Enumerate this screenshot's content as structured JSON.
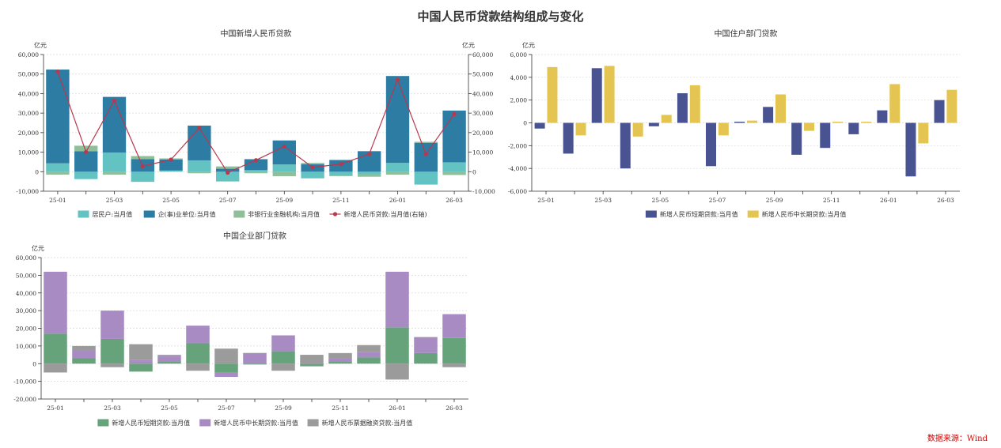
{
  "main_title": "中国人民币贷款结构组成与变化",
  "source": "数据来源：Wind",
  "colors": {
    "residents": "#63c2c2",
    "corporates": "#2d7ca3",
    "nonbank": "#8fbf9a",
    "total_line": "#b8384e",
    "hh_short": "#4a5391",
    "hh_long": "#e4c552",
    "corp_short": "#66a37a",
    "corp_long": "#a98bc3",
    "corp_bill": "#9b9b9b"
  },
  "chart_data": [
    {
      "id": "c1",
      "type": "bar",
      "stacked": true,
      "title": "中国新增人民币贷款",
      "unit_left": "亿元",
      "unit_right": "亿元",
      "categories": [
        "25-01",
        "25-02",
        "25-03",
        "25-04",
        "25-05",
        "25-06",
        "25-07",
        "25-08",
        "25-09",
        "25-10",
        "25-11",
        "25-12",
        "26-01",
        "26-02",
        "26-03"
      ],
      "tick_labels": [
        "25-01",
        "25-03",
        "25-05",
        "25-07",
        "25-09",
        "25-11",
        "26-01",
        "26-03"
      ],
      "ylim": [
        -10000,
        60000
      ],
      "yticks": [
        -10000,
        0,
        10000,
        20000,
        30000,
        40000,
        50000,
        60000
      ],
      "ytick_labels": [
        "-10,000",
        "0",
        "10,000",
        "20,000",
        "30,000",
        "40,000",
        "50,000",
        "60,000"
      ],
      "y2lim": [
        -10000,
        60000
      ],
      "y2ticks": [
        -10000,
        0,
        10000,
        20000,
        30000,
        40000,
        50000,
        60000
      ],
      "y2tick_labels": [
        "-10,000",
        "0",
        "10,000",
        "20,000",
        "30,000",
        "40,000",
        "50,000",
        "60,000"
      ],
      "series": [
        {
          "name": "居民户:当月值",
          "color_key": "residents",
          "values": [
            4300,
            -3800,
            9800,
            -5200,
            600,
            5800,
            -5000,
            800,
            3700,
            -3400,
            -2000,
            -1300,
            4500,
            -6600,
            4800
          ]
        },
        {
          "name": "企(事)业单位:当月值",
          "color_key": "corporates",
          "values": [
            48000,
            10500,
            28500,
            6500,
            5700,
            17800,
            1500,
            5600,
            12300,
            3800,
            6000,
            10500,
            44500,
            14800,
            26500
          ]
        },
        {
          "name": "非银行业金融机构:当月值",
          "color_key": "nonbank",
          "values": [
            -1500,
            2800,
            -1500,
            1500,
            500,
            -800,
            1200,
            -800,
            -2300,
            700,
            -300,
            -1300,
            -1500,
            500,
            -1700
          ]
        },
        {
          "name": "新增人民币贷款:当月值(右轴)",
          "color_key": "total_line",
          "type": "line",
          "axis": "right",
          "values": [
            51300,
            10100,
            36400,
            2800,
            6200,
            22400,
            -500,
            5900,
            12900,
            2200,
            3900,
            9100,
            47100,
            9000,
            29500
          ]
        }
      ]
    },
    {
      "id": "c2",
      "type": "bar",
      "stacked": false,
      "title": "中国住户部门贷款",
      "unit_left": "亿元",
      "categories": [
        "25-01",
        "25-02",
        "25-03",
        "25-04",
        "25-05",
        "25-06",
        "25-07",
        "25-08",
        "25-09",
        "25-10",
        "25-11",
        "25-12",
        "26-01",
        "26-02",
        "26-03"
      ],
      "tick_labels": [
        "25-01",
        "25-03",
        "25-05",
        "25-07",
        "25-09",
        "25-11",
        "26-01",
        "26-03"
      ],
      "ylim": [
        -6000,
        6000
      ],
      "yticks": [
        -6000,
        -4000,
        -2000,
        0,
        2000,
        4000,
        6000
      ],
      "ytick_labels": [
        "-6,000",
        "-4,000",
        "-2,000",
        "0",
        "2,000",
        "4,000",
        "6,000"
      ],
      "series": [
        {
          "name": "新增人民币短期贷款:当月值",
          "color_key": "hh_short",
          "values": [
            -500,
            -2700,
            4800,
            -4000,
            -300,
            2600,
            -3800,
            100,
            1400,
            -2800,
            -2200,
            -1000,
            1100,
            -4700,
            2000
          ]
        },
        {
          "name": "新增人民币中长期贷款:当月值",
          "color_key": "hh_long",
          "values": [
            4900,
            -1100,
            5000,
            -1200,
            700,
            3300,
            -1100,
            200,
            2500,
            -700,
            100,
            100,
            3400,
            -1800,
            2900
          ]
        }
      ]
    },
    {
      "id": "c3",
      "type": "bar",
      "stacked": true,
      "title": "中国企业部门贷款",
      "unit_left": "亿元",
      "categories": [
        "25-01",
        "25-02",
        "25-03",
        "25-04",
        "25-05",
        "25-06",
        "25-07",
        "25-08",
        "25-09",
        "25-10",
        "25-11",
        "25-12",
        "26-01",
        "26-02",
        "26-03"
      ],
      "tick_labels": [
        "25-01",
        "25-03",
        "25-05",
        "25-07",
        "25-09",
        "25-11",
        "26-01",
        "26-03"
      ],
      "ylim": [
        -20000,
        60000
      ],
      "yticks": [
        -20000,
        -10000,
        0,
        10000,
        20000,
        30000,
        40000,
        50000,
        60000
      ],
      "ytick_labels": [
        "-20,000",
        "-10,000",
        "0",
        "10,000",
        "20,000",
        "30,000",
        "40,000",
        "50,000",
        "60,000"
      ],
      "series": [
        {
          "name": "新增人民币短期贷款:当月值",
          "color_key": "corp_short",
          "values": [
            17000,
            3000,
            14000,
            -4500,
            1000,
            11500,
            -5000,
            -500,
            7000,
            -1500,
            1000,
            3500,
            20500,
            6000,
            14500
          ]
        },
        {
          "name": "新增人民币中长期贷款:当月值",
          "color_key": "corp_long",
          "values": [
            35000,
            4500,
            16000,
            2000,
            3500,
            10000,
            -2500,
            6000,
            9000,
            0,
            2000,
            3000,
            31500,
            9000,
            13500
          ]
        },
        {
          "name": "新增人民币票据融资贷款:当月值",
          "color_key": "corp_bill",
          "values": [
            -5000,
            2500,
            -2000,
            9000,
            500,
            -4000,
            8500,
            0,
            -4000,
            5000,
            3000,
            4000,
            -9000,
            0,
            -2000
          ]
        }
      ]
    }
  ]
}
